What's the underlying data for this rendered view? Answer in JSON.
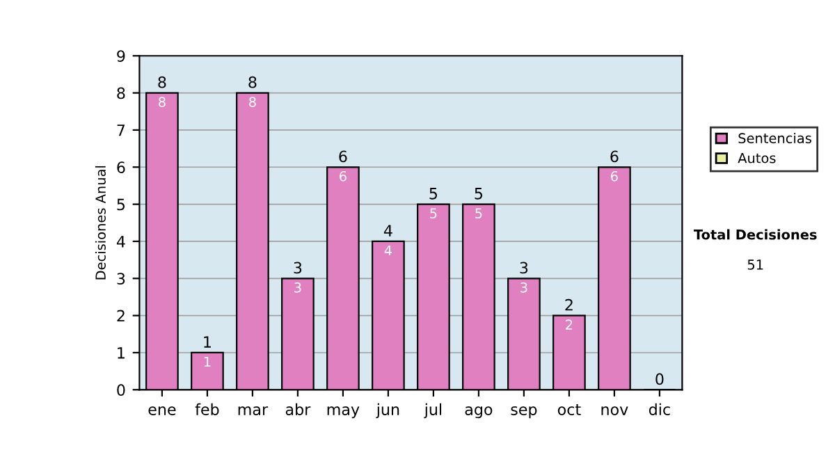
{
  "chart_data": {
    "type": "bar",
    "ylabel": "Decisiones Anual",
    "categories": [
      "ene",
      "feb",
      "mar",
      "abr",
      "may",
      "jun",
      "jul",
      "ago",
      "sep",
      "oct",
      "nov",
      "dic"
    ],
    "series": [
      {
        "name": "Sentencias",
        "color": "#e080c0",
        "values": [
          8,
          1,
          8,
          3,
          6,
          4,
          5,
          5,
          3,
          2,
          6,
          0
        ],
        "value_labels": [
          "8",
          "1",
          "8",
          "3",
          "6",
          "4",
          "5",
          "5",
          "3",
          "2",
          "6",
          null
        ]
      },
      {
        "name": "Autos",
        "color": "#e8f0a0",
        "values": [
          null,
          null,
          null,
          null,
          null,
          null,
          null,
          null,
          null,
          null,
          null,
          null
        ]
      }
    ],
    "stacked": true,
    "totals": [
      "8",
      "1",
      "8",
      "3",
      "6",
      "4",
      "5",
      "5",
      "3",
      "2",
      "6",
      "0"
    ],
    "ylim": [
      0,
      9
    ],
    "yticks": [
      0,
      1,
      2,
      3,
      4,
      5,
      6,
      7,
      8,
      9
    ],
    "grid": "y",
    "legend": "right",
    "annotations": [
      "Total Decisiones",
      "51"
    ]
  }
}
